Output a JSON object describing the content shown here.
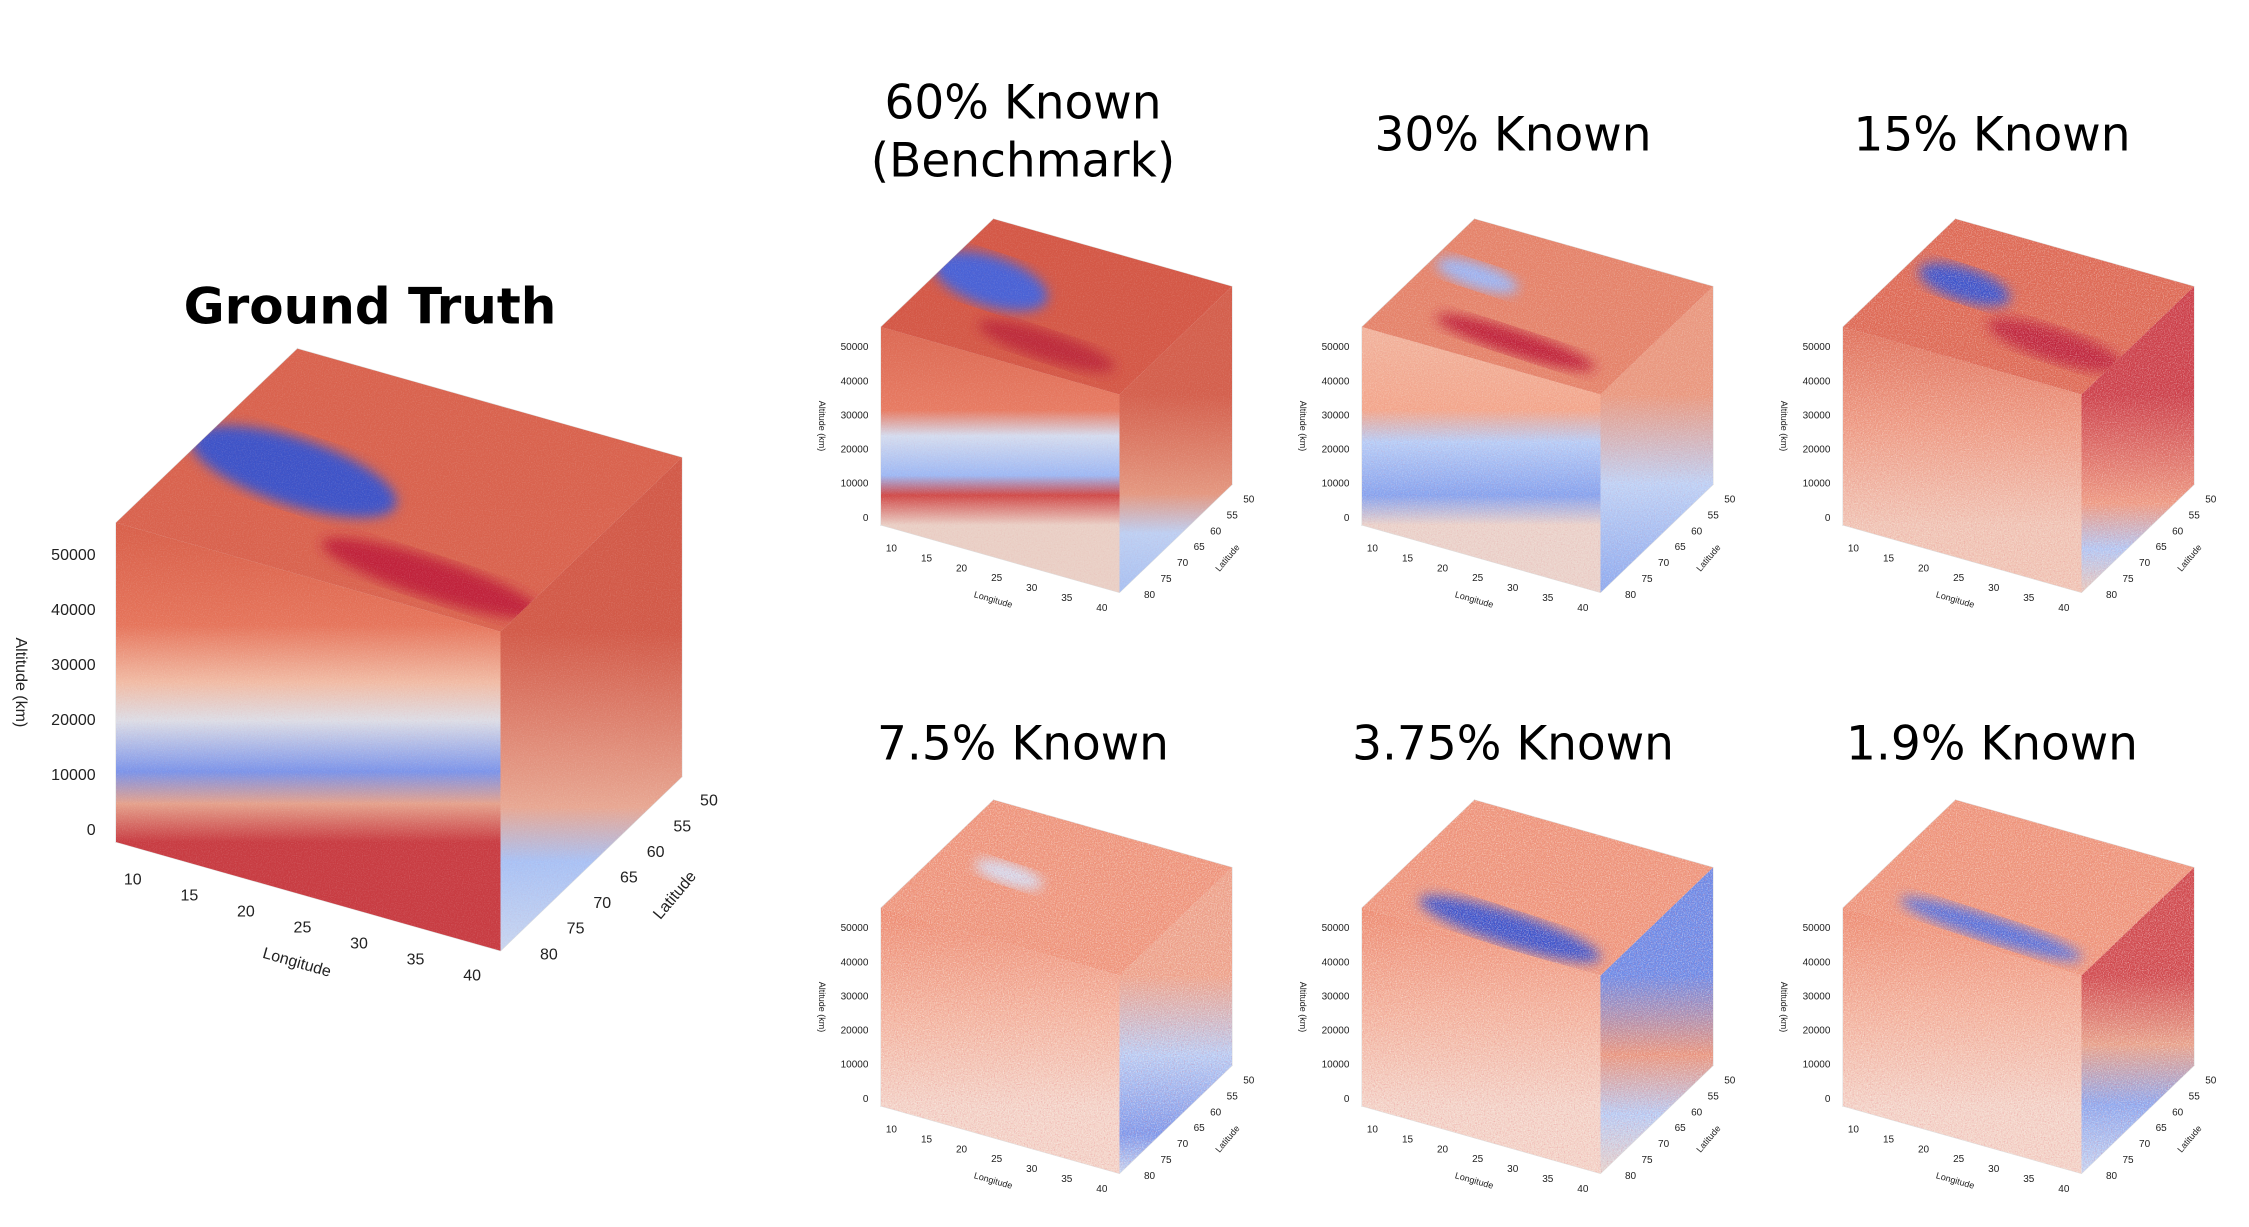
{
  "chart_data": [
    {
      "type": "voxel",
      "title_lines": [
        "Ground Truth"
      ],
      "xlabel": "Longitude",
      "ylabel": "Latitude",
      "zlabel": "Altitude (km)",
      "xlim": [
        8,
        42
      ],
      "ylim": [
        48,
        82
      ],
      "zlim": [
        -2000,
        56000
      ],
      "xticks": [
        10,
        15,
        20,
        25,
        30,
        35,
        40
      ],
      "yticks": [
        50,
        55,
        60,
        65,
        70,
        75,
        80
      ],
      "zticks": [
        0,
        10000,
        20000,
        30000,
        40000,
        50000
      ]
    },
    {
      "type": "voxel",
      "title_lines": [
        "60% Known",
        "(Benchmark)"
      ],
      "xlabel": "Longitude",
      "ylabel": "Latitude",
      "zlabel": "Altitude (km)",
      "xlim": [
        8,
        42
      ],
      "ylim": [
        48,
        82
      ],
      "zlim": [
        -2000,
        56000
      ],
      "xticks": [
        10,
        15,
        20,
        25,
        30,
        35,
        40
      ],
      "yticks": [
        50,
        55,
        60,
        65,
        70,
        75,
        80
      ],
      "zticks": [
        0,
        10000,
        20000,
        30000,
        40000,
        50000
      ]
    },
    {
      "type": "voxel",
      "title_lines": [
        "30% Known"
      ],
      "xlabel": "Longitude",
      "ylabel": "Latitude",
      "zlabel": "Altitude (km)",
      "xlim": [
        8,
        42
      ],
      "ylim": [
        48,
        82
      ],
      "zlim": [
        -2000,
        56000
      ],
      "xticks": [
        10,
        15,
        20,
        25,
        30,
        35,
        40
      ],
      "yticks": [
        50,
        55,
        60,
        65,
        70,
        75,
        80
      ],
      "zticks": [
        0,
        10000,
        20000,
        30000,
        40000,
        50000
      ]
    },
    {
      "type": "voxel",
      "title_lines": [
        "15% Known"
      ],
      "xlabel": "Longitude",
      "ylabel": "Latitude",
      "zlabel": "Altitude (km)",
      "xlim": [
        8,
        42
      ],
      "ylim": [
        48,
        82
      ],
      "zlim": [
        -2000,
        56000
      ],
      "xticks": [
        10,
        15,
        20,
        25,
        30,
        35,
        40
      ],
      "yticks": [
        50,
        55,
        60,
        65,
        70,
        75,
        80
      ],
      "zticks": [
        0,
        10000,
        20000,
        30000,
        40000,
        50000
      ]
    },
    {
      "type": "voxel",
      "title_lines": [
        "7.5% Known"
      ],
      "xlabel": "Longitude",
      "ylabel": "Latitude",
      "zlabel": "Altitude (km)",
      "xlim": [
        8,
        42
      ],
      "ylim": [
        48,
        82
      ],
      "zlim": [
        -2000,
        56000
      ],
      "xticks": [
        10,
        15,
        20,
        25,
        30,
        35,
        40
      ],
      "yticks": [
        50,
        55,
        60,
        65,
        70,
        75,
        80
      ],
      "zticks": [
        0,
        10000,
        20000,
        30000,
        40000,
        50000
      ]
    },
    {
      "type": "voxel",
      "title_lines": [
        "3.75% Known"
      ],
      "xlabel": "Longitude",
      "ylabel": "Latitude",
      "zlabel": "Altitude (km)",
      "xlim": [
        8,
        42
      ],
      "ylim": [
        48,
        82
      ],
      "zlim": [
        -2000,
        56000
      ],
      "xticks": [
        10,
        15,
        20,
        25,
        30,
        35,
        40
      ],
      "yticks": [
        50,
        55,
        60,
        65,
        70,
        75,
        80
      ],
      "zticks": [
        0,
        10000,
        20000,
        30000,
        40000,
        50000
      ]
    },
    {
      "type": "voxel",
      "title_lines": [
        "1.9% Known"
      ],
      "xlabel": "Longitude",
      "ylabel": "Latitude",
      "zlabel": "Altitude (km)",
      "xlim": [
        8,
        42
      ],
      "ylim": [
        48,
        82
      ],
      "zlim": [
        -2000,
        56000
      ],
      "xticks": [
        10,
        15,
        20,
        25,
        30,
        35,
        40
      ],
      "yticks": [
        50,
        55,
        60,
        65,
        70,
        75,
        80
      ],
      "zticks": [
        0,
        10000,
        20000,
        30000,
        40000,
        50000
      ]
    }
  ]
}
